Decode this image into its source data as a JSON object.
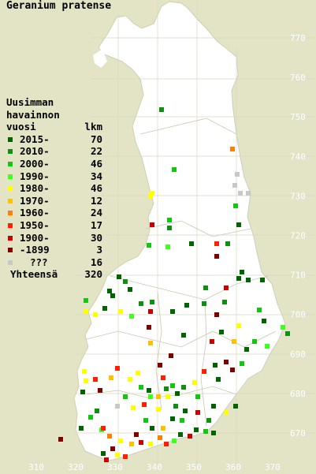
{
  "title": "Geranium pratense",
  "legend": {
    "heading": [
      "Uusimman",
      "havainnon"
    ],
    "col_year": "vuosi",
    "col_count": "lkm",
    "items": [
      {
        "label": "2015-",
        "count": "70",
        "color": "#006400"
      },
      {
        "label": "2010-",
        "count": "22",
        "color": "#109010"
      },
      {
        "label": "2000-",
        "count": "46",
        "color": "#10c810"
      },
      {
        "label": "1990-",
        "count": "34",
        "color": "#40ff20"
      },
      {
        "label": "1980-",
        "count": "46",
        "color": "#ffff00"
      },
      {
        "label": "1970-",
        "count": "12",
        "color": "#ffc000"
      },
      {
        "label": "1960-",
        "count": "24",
        "color": "#ff8000"
      },
      {
        "label": "1950-",
        "count": "17",
        "color": "#ff2000"
      },
      {
        "label": "1900-",
        "count": "30",
        "color": "#c80000"
      },
      {
        "label": "-1899",
        "count": "3",
        "color": "#800000"
      },
      {
        "label": "???",
        "count": "16",
        "color": "#c8c8c8"
      }
    ],
    "total_label": "Yhteensä",
    "total_count": "320"
  },
  "grid": {
    "y_ticks": [
      "770",
      "760",
      "750",
      "740",
      "730",
      "720",
      "710",
      "700",
      "690",
      "680",
      "670"
    ],
    "x_ticks": [
      "310",
      "320",
      "330",
      "340",
      "350",
      "360",
      "370"
    ]
  }
}
